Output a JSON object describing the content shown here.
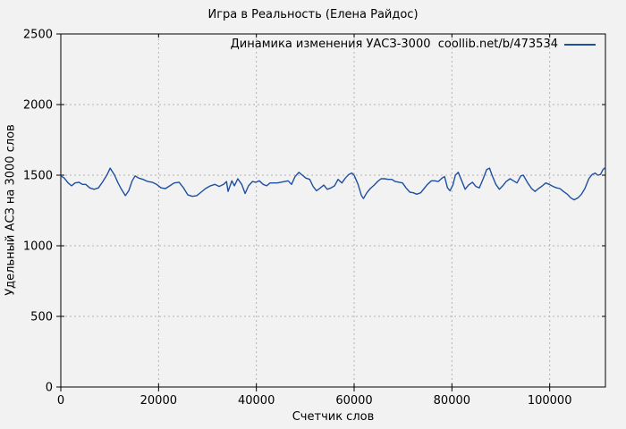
{
  "figure": {
    "background": "#f2f2f2",
    "grid_color": "#b3b3b3",
    "border_color": "#000000"
  },
  "chart_data": {
    "type": "line",
    "title": "Игра в Реальность (Елена Райдос)",
    "xlabel": "Счетчик слов",
    "ylabel": "Удельный АСЗ на 3000 слов",
    "xlim": [
      0,
      111400
    ],
    "ylim": [
      0,
      2500
    ],
    "xticks": [
      0,
      20000,
      40000,
      60000,
      80000,
      100000
    ],
    "yticks": [
      0,
      500,
      1000,
      1500,
      2000,
      2500
    ],
    "grid": "dotted",
    "legend_position": "top-right-inside",
    "series": [
      {
        "name": "Динамика изменения УАСЗ-3000  coollib.net/b/473534",
        "color": "#1f4fa0",
        "points": [
          [
            0,
            1495
          ],
          [
            700,
            1480
          ],
          [
            1500,
            1445
          ],
          [
            2200,
            1425
          ],
          [
            2900,
            1445
          ],
          [
            3700,
            1450
          ],
          [
            4400,
            1435
          ],
          [
            5100,
            1435
          ],
          [
            5900,
            1410
          ],
          [
            6800,
            1400
          ],
          [
            7700,
            1410
          ],
          [
            8600,
            1455
          ],
          [
            9500,
            1505
          ],
          [
            10100,
            1550
          ],
          [
            11000,
            1500
          ],
          [
            11700,
            1445
          ],
          [
            12400,
            1400
          ],
          [
            13200,
            1355
          ],
          [
            13900,
            1390
          ],
          [
            14600,
            1460
          ],
          [
            15200,
            1495
          ],
          [
            15900,
            1480
          ],
          [
            16800,
            1470
          ],
          [
            17800,
            1455
          ],
          [
            18700,
            1450
          ],
          [
            19600,
            1435
          ],
          [
            20500,
            1410
          ],
          [
            21400,
            1405
          ],
          [
            22300,
            1425
          ],
          [
            23200,
            1445
          ],
          [
            24200,
            1450
          ],
          [
            25100,
            1410
          ],
          [
            26000,
            1360
          ],
          [
            26900,
            1350
          ],
          [
            27800,
            1355
          ],
          [
            28700,
            1380
          ],
          [
            29600,
            1405
          ],
          [
            30600,
            1425
          ],
          [
            31500,
            1435
          ],
          [
            32400,
            1420
          ],
          [
            33300,
            1435
          ],
          [
            33900,
            1455
          ],
          [
            34200,
            1385
          ],
          [
            35000,
            1460
          ],
          [
            35500,
            1425
          ],
          [
            36200,
            1475
          ],
          [
            37000,
            1435
          ],
          [
            37700,
            1370
          ],
          [
            38400,
            1425
          ],
          [
            39200,
            1455
          ],
          [
            39900,
            1450
          ],
          [
            40600,
            1460
          ],
          [
            41400,
            1435
          ],
          [
            42100,
            1425
          ],
          [
            42800,
            1445
          ],
          [
            43600,
            1445
          ],
          [
            44300,
            1445
          ],
          [
            45000,
            1450
          ],
          [
            45800,
            1455
          ],
          [
            46500,
            1460
          ],
          [
            47200,
            1435
          ],
          [
            47900,
            1490
          ],
          [
            48700,
            1520
          ],
          [
            49400,
            1500
          ],
          [
            50100,
            1480
          ],
          [
            50900,
            1470
          ],
          [
            51600,
            1420
          ],
          [
            52300,
            1390
          ],
          [
            53100,
            1410
          ],
          [
            53800,
            1430
          ],
          [
            54500,
            1400
          ],
          [
            55300,
            1410
          ],
          [
            56000,
            1425
          ],
          [
            56700,
            1470
          ],
          [
            57500,
            1445
          ],
          [
            58200,
            1480
          ],
          [
            58900,
            1505
          ],
          [
            59500,
            1515
          ],
          [
            60000,
            1500
          ],
          [
            60800,
            1435
          ],
          [
            61500,
            1355
          ],
          [
            61900,
            1335
          ],
          [
            62600,
            1375
          ],
          [
            63300,
            1405
          ],
          [
            64100,
            1430
          ],
          [
            64800,
            1455
          ],
          [
            65500,
            1475
          ],
          [
            66200,
            1475
          ],
          [
            67000,
            1470
          ],
          [
            67700,
            1470
          ],
          [
            68400,
            1455
          ],
          [
            69200,
            1450
          ],
          [
            69900,
            1445
          ],
          [
            70600,
            1410
          ],
          [
            71400,
            1380
          ],
          [
            72100,
            1375
          ],
          [
            72800,
            1365
          ],
          [
            73600,
            1375
          ],
          [
            74300,
            1405
          ],
          [
            75000,
            1435
          ],
          [
            75800,
            1460
          ],
          [
            76500,
            1460
          ],
          [
            77200,
            1455
          ],
          [
            78000,
            1480
          ],
          [
            78500,
            1490
          ],
          [
            79100,
            1410
          ],
          [
            79600,
            1390
          ],
          [
            80200,
            1430
          ],
          [
            80700,
            1500
          ],
          [
            81300,
            1520
          ],
          [
            82000,
            1460
          ],
          [
            82700,
            1400
          ],
          [
            83400,
            1430
          ],
          [
            84200,
            1450
          ],
          [
            84900,
            1420
          ],
          [
            85600,
            1410
          ],
          [
            86400,
            1475
          ],
          [
            87100,
            1540
          ],
          [
            87700,
            1550
          ],
          [
            88200,
            1500
          ],
          [
            89000,
            1435
          ],
          [
            89700,
            1400
          ],
          [
            90400,
            1425
          ],
          [
            91100,
            1455
          ],
          [
            91900,
            1475
          ],
          [
            92600,
            1460
          ],
          [
            93300,
            1445
          ],
          [
            94100,
            1495
          ],
          [
            94600,
            1500
          ],
          [
            95500,
            1445
          ],
          [
            96300,
            1405
          ],
          [
            97000,
            1385
          ],
          [
            97700,
            1405
          ],
          [
            98500,
            1425
          ],
          [
            99200,
            1445
          ],
          [
            99900,
            1435
          ],
          [
            100700,
            1420
          ],
          [
            101400,
            1410
          ],
          [
            102100,
            1405
          ],
          [
            102800,
            1385
          ],
          [
            103600,
            1365
          ],
          [
            104300,
            1340
          ],
          [
            105000,
            1325
          ],
          [
            105800,
            1340
          ],
          [
            106500,
            1365
          ],
          [
            107200,
            1405
          ],
          [
            108000,
            1475
          ],
          [
            108700,
            1505
          ],
          [
            109300,
            1515
          ],
          [
            109800,
            1500
          ],
          [
            110400,
            1505
          ],
          [
            110900,
            1540
          ],
          [
            111400,
            1555
          ]
        ]
      }
    ]
  }
}
